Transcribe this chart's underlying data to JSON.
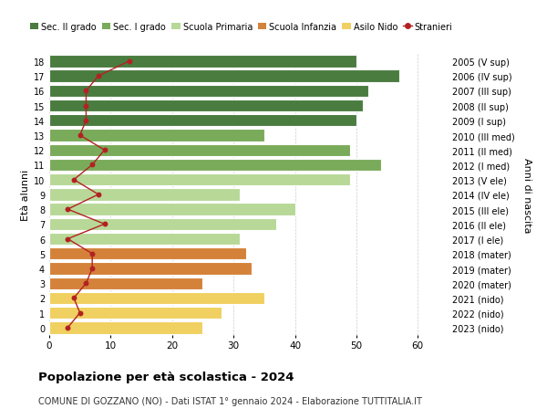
{
  "ages": [
    18,
    17,
    16,
    15,
    14,
    13,
    12,
    11,
    10,
    9,
    8,
    7,
    6,
    5,
    4,
    3,
    2,
    1,
    0
  ],
  "bar_values": [
    50,
    57,
    52,
    51,
    50,
    35,
    49,
    54,
    49,
    31,
    40,
    37,
    31,
    32,
    33,
    25,
    35,
    28,
    25
  ],
  "stranieri": [
    13,
    8,
    6,
    6,
    6,
    5,
    9,
    7,
    4,
    8,
    3,
    9,
    3,
    7,
    7,
    6,
    4,
    5,
    3
  ],
  "right_labels": [
    "2005 (V sup)",
    "2006 (IV sup)",
    "2007 (III sup)",
    "2008 (II sup)",
    "2009 (I sup)",
    "2010 (III med)",
    "2011 (II med)",
    "2012 (I med)",
    "2013 (V ele)",
    "2014 (IV ele)",
    "2015 (III ele)",
    "2016 (II ele)",
    "2017 (I ele)",
    "2018 (mater)",
    "2019 (mater)",
    "2020 (mater)",
    "2021 (nido)",
    "2022 (nido)",
    "2023 (nido)"
  ],
  "bar_colors": [
    "#4a7c3f",
    "#4a7c3f",
    "#4a7c3f",
    "#4a7c3f",
    "#4a7c3f",
    "#7aab5a",
    "#7aab5a",
    "#7aab5a",
    "#b8d898",
    "#b8d898",
    "#b8d898",
    "#b8d898",
    "#b8d898",
    "#d4823a",
    "#d4823a",
    "#d4823a",
    "#f0d060",
    "#f0d060",
    "#f0d060"
  ],
  "legend_labels": [
    "Sec. II grado",
    "Sec. I grado",
    "Scuola Primaria",
    "Scuola Infanzia",
    "Asilo Nido",
    "Stranieri"
  ],
  "legend_colors": [
    "#4a7c3f",
    "#7aab5a",
    "#b8d898",
    "#d4823a",
    "#f0d060",
    "#b22222"
  ],
  "stranieri_color": "#b22222",
  "ylabel_left": "Età alunni",
  "ylabel_right": "Anni di nascita",
  "title": "Popolazione per età scolastica - 2024",
  "subtitle": "COMUNE DI GOZZANO (NO) - Dati ISTAT 1° gennaio 2024 - Elaborazione TUTTITALIA.IT",
  "xlim": [
    0,
    65
  ],
  "bg_color": "#ffffff",
  "grid_color": "#cccccc"
}
